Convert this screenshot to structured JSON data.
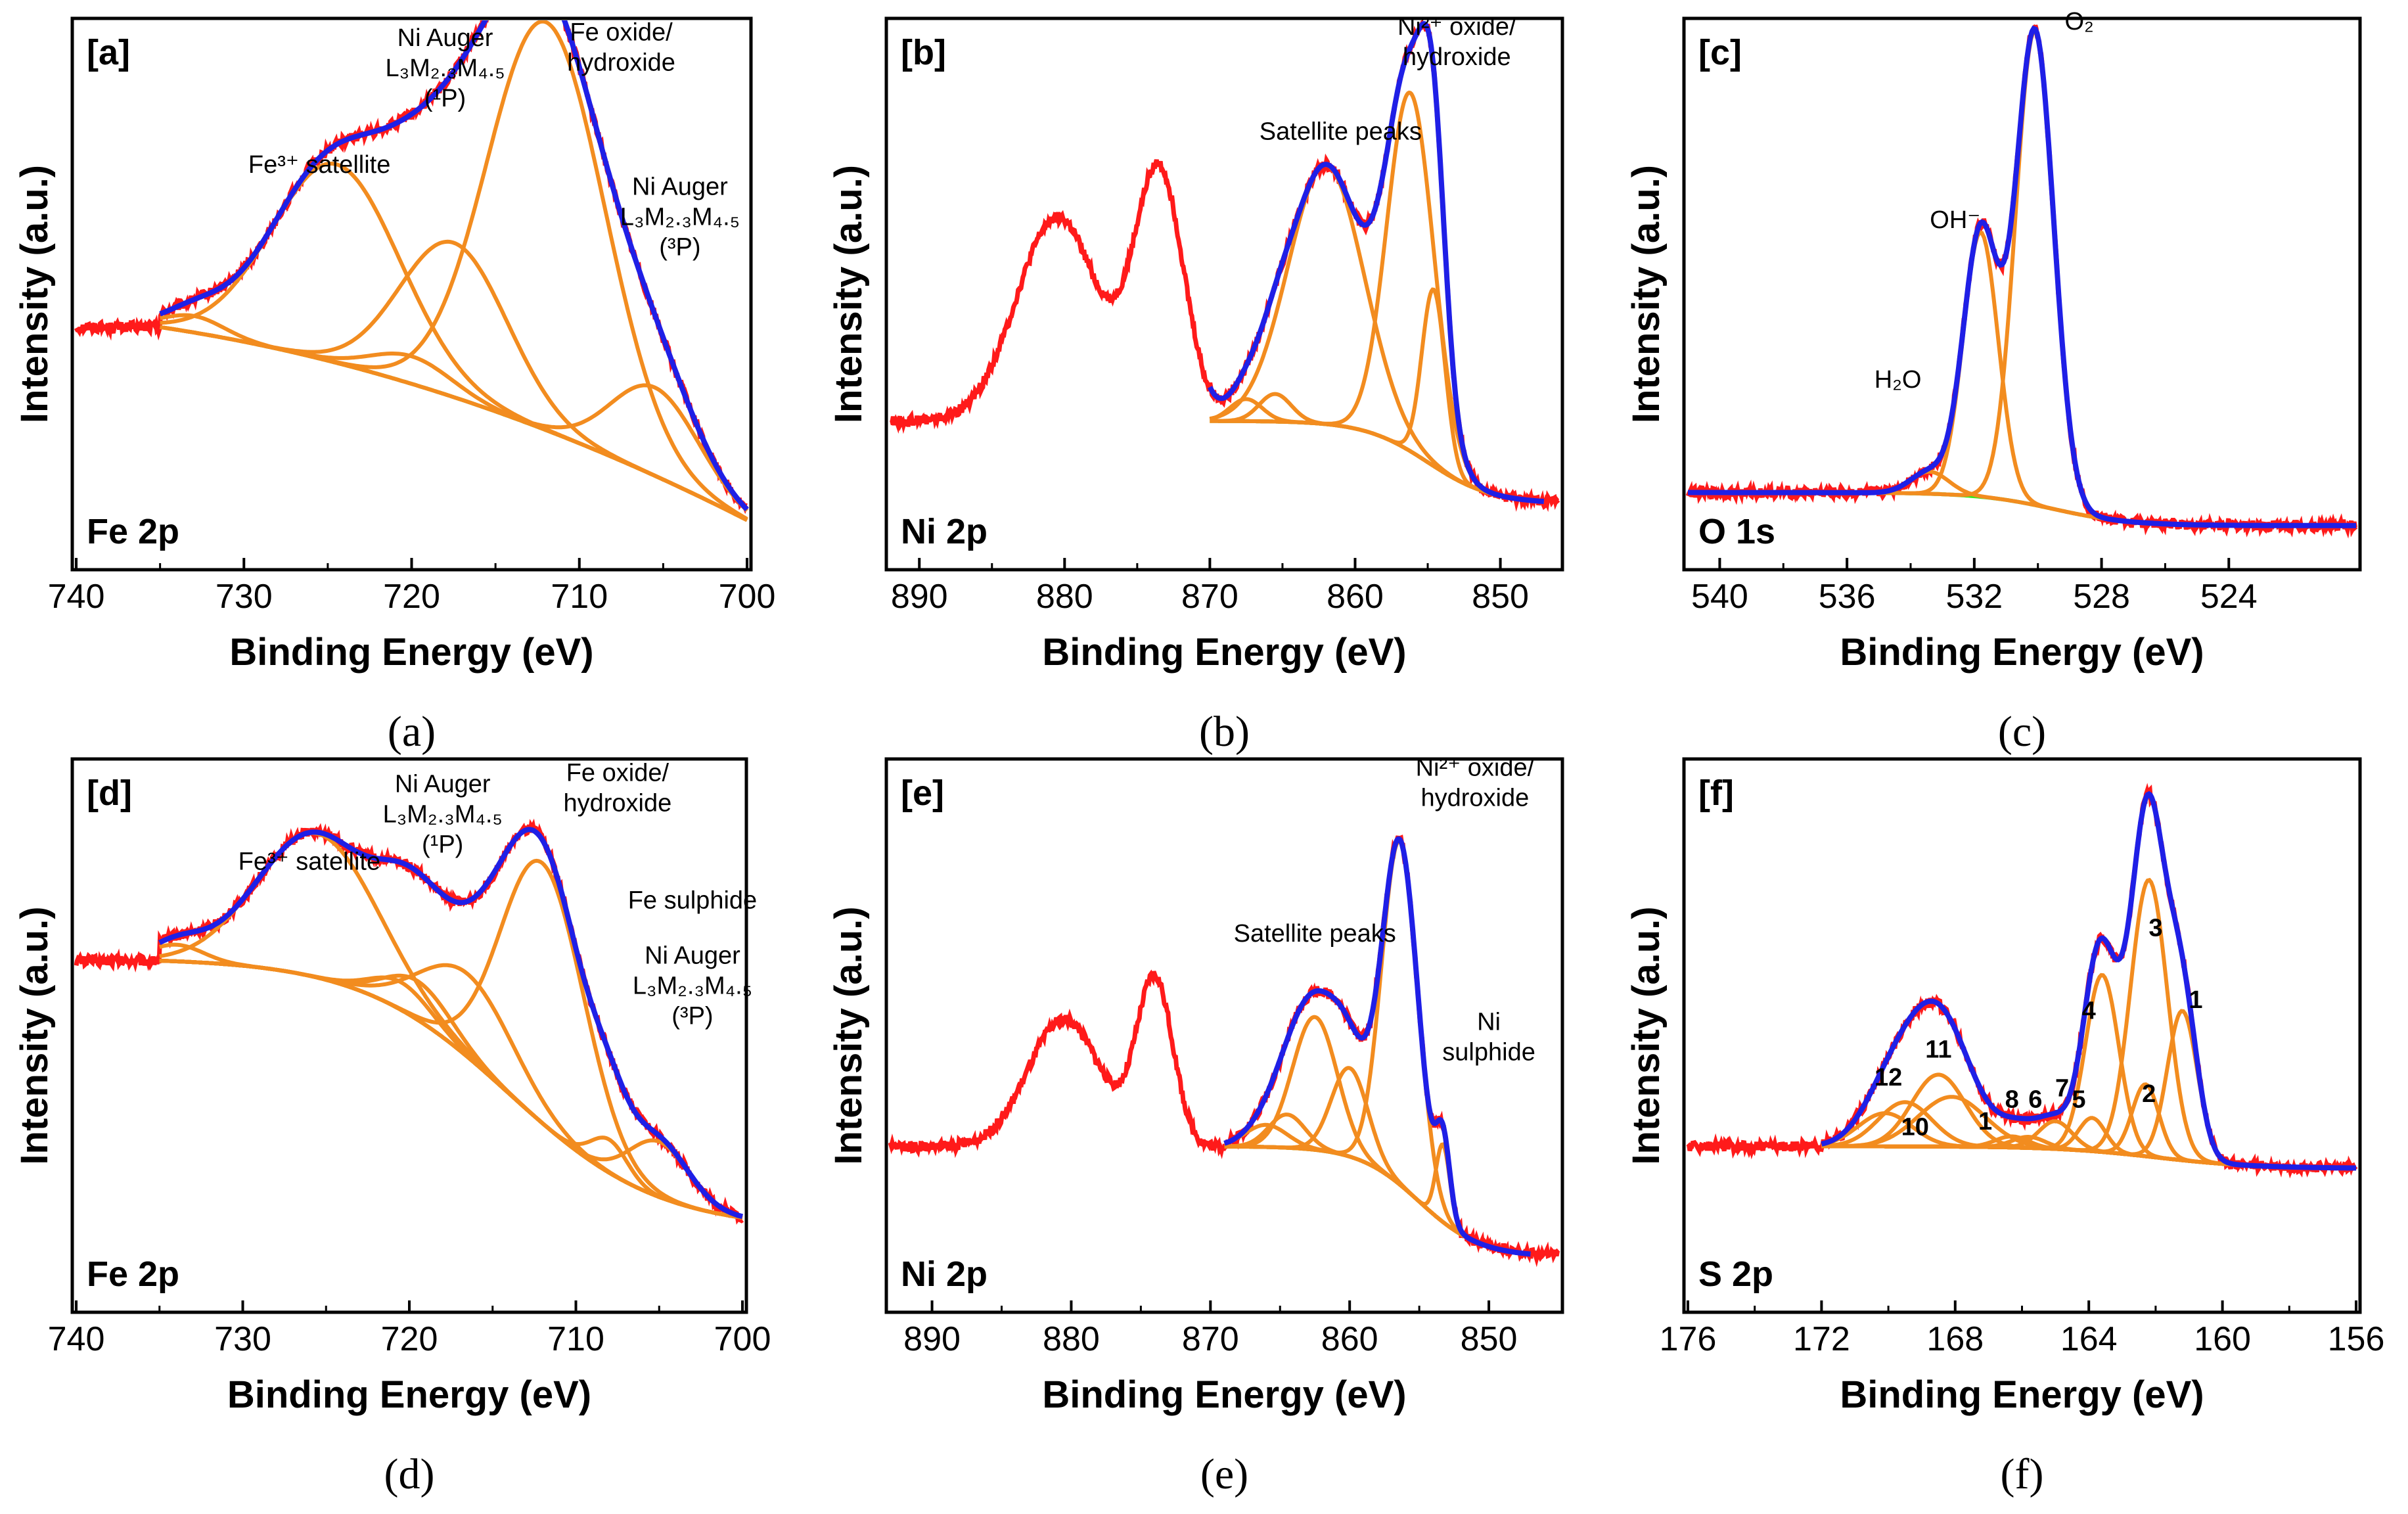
{
  "colors": {
    "raw": "#ff1a1a",
    "fit": "#1f1fe6",
    "component": "#f28c1f",
    "background": "#39e61f",
    "axis": "#000000"
  },
  "chart_data": [
    {
      "id": "a",
      "type": "line",
      "tag": "[a]",
      "caption": "(a)",
      "label": "Fe 2p",
      "xlabel": "Binding Energy (eV)",
      "ylabel": "Intensity (a.u.)",
      "xlim": [
        740,
        700
      ],
      "xticks": [
        740,
        730,
        720,
        710,
        700
      ],
      "ylim": [
        0,
        1.0
      ],
      "yticks": [],
      "fit_range": [
        735,
        700
      ],
      "baseline": {
        "type": "linear",
        "hi": 0.44,
        "lo": 0.09
      },
      "components": [
        {
          "c": 733,
          "a": 0.03,
          "w": 1.8
        },
        {
          "c": 724.5,
          "a": 0.36,
          "w": 3.8
        },
        {
          "c": 720,
          "a": 0.05,
          "w": 2.4
        },
        {
          "c": 717.5,
          "a": 0.28,
          "w": 3.2
        },
        {
          "c": 712,
          "a": 0.74,
          "w": 3.5
        },
        {
          "c": 705.5,
          "a": 0.16,
          "w": 2.6
        }
      ],
      "raw_ext": [],
      "annotations": [
        {
          "text": "Fe³⁺ satellite",
          "lines": [
            "Fe³⁺ satellite"
          ],
          "x": 725.5,
          "y": 0.72
        },
        {
          "text": "Ni Auger L3M2.3M4.5 (1P)",
          "lines": [
            "Ni Auger",
            "L₃M₂.₃M₄.₅",
            "(¹P)"
          ],
          "x": 718,
          "y": 0.95
        },
        {
          "text": "Fe oxide/ hydroxide",
          "lines": [
            "Fe oxide/",
            "hydroxide"
          ],
          "x": 707.5,
          "y": 0.96
        },
        {
          "text": "Ni Auger L3M2.3M4.5 (3P)",
          "lines": [
            "Ni Auger",
            "L₃M₂.₃M₄.₅",
            "(³P)"
          ],
          "x": 704,
          "y": 0.68
        }
      ],
      "numbers": []
    },
    {
      "id": "b",
      "type": "line",
      "tag": "[b]",
      "caption": "(b)",
      "label": "Ni 2p",
      "xlabel": "Binding Energy (eV)",
      "ylabel": "Intensity (a.u.)",
      "xlim": [
        892,
        846
      ],
      "xticks": [
        890,
        880,
        870,
        860,
        850
      ],
      "ylim": [
        0,
        1.0
      ],
      "yticks": [],
      "fit_range": [
        870,
        847
      ],
      "baseline": {
        "type": "sigmoid",
        "hi": 0.27,
        "lo": 0.12,
        "c": 855,
        "k": 2.2
      },
      "components": [
        {
          "c": 867.5,
          "a": 0.04,
          "w": 1.1
        },
        {
          "c": 865.5,
          "a": 0.05,
          "w": 1.1
        },
        {
          "c": 862,
          "a": 0.47,
          "w": 2.6
        },
        {
          "c": 856.2,
          "a": 0.65,
          "w": 1.6
        },
        {
          "c": 854.6,
          "a": 0.32,
          "w": 0.8
        }
      ],
      "raw_ext": [
        {
          "c": 880.5,
          "a": 0.37,
          "w": 2.8
        },
        {
          "c": 873.5,
          "a": 0.45,
          "w": 1.7
        }
      ],
      "annotations": [
        {
          "text": "Ni²⁺ oxide/ hydroxide",
          "lines": [
            "Ni²⁺ oxide/",
            "hydroxide"
          ],
          "x": 853,
          "y": 0.97
        },
        {
          "text": "Satellite peaks",
          "lines": [
            "Satellite peaks"
          ],
          "x": 861,
          "y": 0.78
        }
      ],
      "numbers": []
    },
    {
      "id": "c",
      "type": "line",
      "tag": "[c]",
      "caption": "(c)",
      "label": "O 1s",
      "xlabel": "Binding Energy (eV)",
      "ylabel": "Intensity (a.u.)",
      "xlim": [
        541,
        520
      ],
      "xticks": [
        540,
        536,
        532,
        528,
        524
      ],
      "ylim": [
        0,
        1.0
      ],
      "yticks": [],
      "fit_range": [
        541,
        520
      ],
      "baseline": {
        "type": "sigmoid",
        "hi": 0.14,
        "lo": 0.08,
        "c": 529.5,
        "k": 1.2
      },
      "components": [
        {
          "c": 533.4,
          "a": 0.04,
          "w": 0.6
        },
        {
          "c": 531.8,
          "a": 0.48,
          "w": 0.55
        },
        {
          "c": 530.1,
          "a": 0.86,
          "w": 0.6
        }
      ],
      "raw_ext": [],
      "annotations": [
        {
          "text": "O2",
          "lines": [
            "O₂"
          ],
          "x": 528.7,
          "y": 0.98
        },
        {
          "text": "OH-",
          "lines": [
            "OH⁻"
          ],
          "x": 532.6,
          "y": 0.62
        },
        {
          "text": "H2O",
          "lines": [
            "H₂O"
          ],
          "x": 534.4,
          "y": 0.33
        }
      ],
      "numbers": []
    },
    {
      "id": "d",
      "type": "line",
      "tag": "[d]",
      "caption": "(d)",
      "label": "Fe 2p",
      "xlabel": "Binding Energy (eV)",
      "ylabel": "Intensity (a.u.)",
      "xlim": [
        740,
        700
      ],
      "xticks": [
        740,
        730,
        720,
        710,
        700
      ],
      "ylim": [
        0,
        1.0
      ],
      "yticks": [],
      "fit_range": [
        735,
        700
      ],
      "baseline": {
        "type": "sigmoid",
        "hi": 0.64,
        "lo": 0.15,
        "c": 714,
        "k": 4.5
      },
      "components": [
        {
          "c": 734,
          "a": 0.03,
          "w": 1.6
        },
        {
          "c": 725.5,
          "a": 0.26,
          "w": 3.6
        },
        {
          "c": 720.5,
          "a": 0.05,
          "w": 1.8
        },
        {
          "c": 719.5,
          "a": 0.07,
          "w": 2.0
        },
        {
          "c": 716.5,
          "a": 0.15,
          "w": 2.8
        },
        {
          "c": 712,
          "a": 0.47,
          "w": 2.5
        },
        {
          "c": 708,
          "a": 0.06,
          "w": 1.1
        },
        {
          "c": 705,
          "a": 0.1,
          "w": 1.8
        }
      ],
      "raw_ext": [],
      "annotations": [
        {
          "text": "Fe³⁺ satellite",
          "lines": [
            "Fe³⁺ satellite"
          ],
          "x": 726,
          "y": 0.8
        },
        {
          "text": "Ni Auger L3M2.3M4.5 (1P)",
          "lines": [
            "Ni Auger",
            "L₃M₂.₃M₄.₅",
            "(¹P)"
          ],
          "x": 718,
          "y": 0.94
        },
        {
          "text": "Fe oxide/ hydroxide",
          "lines": [
            "Fe oxide/",
            "hydroxide"
          ],
          "x": 707.5,
          "y": 0.96
        },
        {
          "text": "Fe sulphide",
          "lines": [
            "Fe sulphide"
          ],
          "x": 703,
          "y": 0.73
        },
        {
          "text": "Ni Auger L3M2.3M4.5 (3P)",
          "lines": [
            "Ni Auger",
            "L₃M₂.₃M₄.₅",
            "(³P)"
          ],
          "x": 703,
          "y": 0.63
        }
      ],
      "numbers": []
    },
    {
      "id": "e",
      "type": "line",
      "tag": "[e]",
      "caption": "(e)",
      "label": "Ni 2p",
      "xlabel": "Binding Energy (eV)",
      "ylabel": "Intensity (a.u.)",
      "xlim": [
        893,
        845
      ],
      "xticks": [
        890,
        880,
        870,
        860,
        850
      ],
      "ylim": [
        0,
        1.0
      ],
      "yticks": [],
      "fit_range": [
        869,
        847
      ],
      "baseline": {
        "type": "sigmoid",
        "hi": 0.3,
        "lo": 0.1,
        "c": 855,
        "k": 2.2
      },
      "components": [
        {
          "c": 866,
          "a": 0.04,
          "w": 1.5
        },
        {
          "c": 864.5,
          "a": 0.06,
          "w": 1.3
        },
        {
          "c": 862.5,
          "a": 0.24,
          "w": 1.6
        },
        {
          "c": 860,
          "a": 0.16,
          "w": 1.3
        },
        {
          "c": 856.4,
          "a": 0.62,
          "w": 1.3
        },
        {
          "c": 853.3,
          "a": 0.14,
          "w": 0.5
        }
      ],
      "raw_ext": [
        {
          "c": 880.5,
          "a": 0.23,
          "w": 2.6
        },
        {
          "c": 874,
          "a": 0.3,
          "w": 1.3
        }
      ],
      "annotations": [
        {
          "text": "Ni²⁺ oxide/ hydroxide",
          "lines": [
            "Ni²⁺ oxide/",
            "hydroxide"
          ],
          "x": 851,
          "y": 0.97
        },
        {
          "text": "Satellite peaks",
          "lines": [
            "Satellite peaks"
          ],
          "x": 862.5,
          "y": 0.67
        },
        {
          "text": "Ni sulphide",
          "lines": [
            "Ni",
            "sulphide"
          ],
          "x": 850,
          "y": 0.51
        }
      ],
      "numbers": []
    },
    {
      "id": "f",
      "type": "line",
      "tag": "[f]",
      "caption": "(f)",
      "label": "S 2p",
      "xlabel": "Binding Energy (eV)",
      "ylabel": "Intensity (a.u.)",
      "xlim": [
        176,
        156
      ],
      "xticks": [
        176,
        172,
        168,
        164,
        160,
        156
      ],
      "ylim": [
        0,
        1.0
      ],
      "yticks": [],
      "fit_range": [
        172,
        156
      ],
      "baseline": {
        "type": "sigmoid",
        "hi": 0.3,
        "lo": 0.26,
        "c": 162,
        "k": 1.5
      },
      "components": [
        {
          "c": 170.1,
          "a": 0.06,
          "w": 0.8
        },
        {
          "c": 169.5,
          "a": 0.08,
          "w": 0.8
        },
        {
          "c": 168.5,
          "a": 0.13,
          "w": 0.8
        },
        {
          "c": 168.1,
          "a": 0.09,
          "w": 1.0
        },
        {
          "c": 166.3,
          "a": 0.02,
          "w": 0.5
        },
        {
          "c": 165.8,
          "a": 0.02,
          "w": 0.5
        },
        {
          "c": 165.0,
          "a": 0.05,
          "w": 0.5
        },
        {
          "c": 163.9,
          "a": 0.06,
          "w": 0.4
        },
        {
          "c": 163.6,
          "a": 0.32,
          "w": 0.5
        },
        {
          "c": 162.3,
          "a": 0.13,
          "w": 0.4
        },
        {
          "c": 162.2,
          "a": 0.5,
          "w": 0.55
        },
        {
          "c": 161.2,
          "a": 0.27,
          "w": 0.45
        }
      ],
      "raw_ext": [],
      "annotations": [],
      "numbers": [
        {
          "text": "12",
          "x": 170.0,
          "y": 0.41
        },
        {
          "text": "11",
          "x": 168.5,
          "y": 0.46
        },
        {
          "text": "10",
          "x": 169.2,
          "y": 0.32
        },
        {
          "text": "1",
          "x": 167.1,
          "y": 0.33
        },
        {
          "text": "8",
          "x": 166.3,
          "y": 0.37
        },
        {
          "text": "6",
          "x": 165.6,
          "y": 0.37
        },
        {
          "text": "7",
          "x": 164.8,
          "y": 0.39
        },
        {
          "text": "5",
          "x": 164.3,
          "y": 0.37
        },
        {
          "text": "4",
          "x": 164.0,
          "y": 0.53
        },
        {
          "text": "3",
          "x": 162.0,
          "y": 0.68
        },
        {
          "text": "2",
          "x": 162.2,
          "y": 0.38
        },
        {
          "text": "1",
          "x": 160.8,
          "y": 0.55
        }
      ]
    }
  ]
}
